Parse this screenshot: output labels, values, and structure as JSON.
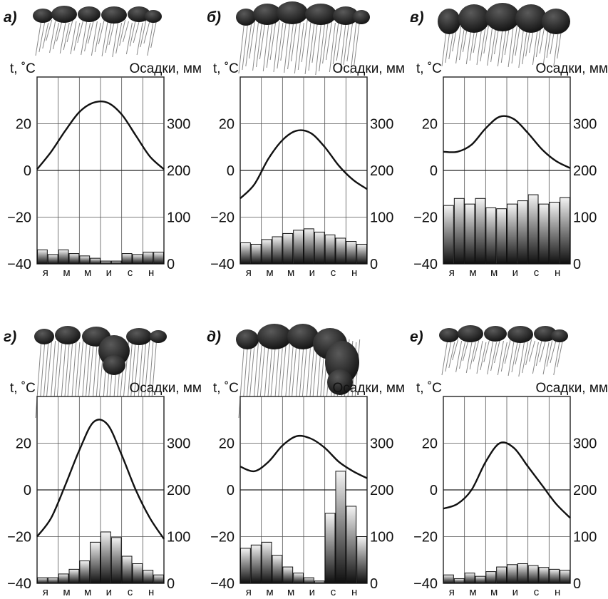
{
  "chart_data": [
    {
      "type": "bar+line",
      "letter": "а)",
      "t_label": "t, ˚C",
      "p_label": "Осадки, мм",
      "temp_ticks": [
        "20",
        "0",
        "−20",
        "−40"
      ],
      "precip_ticks": [
        "300",
        "200",
        "100",
        "0"
      ],
      "months": [
        "я",
        "м",
        "м",
        "и",
        "с",
        "н"
      ],
      "ylim_temp": [
        -40,
        40
      ],
      "ylim_precip": [
        0,
        400
      ],
      "temperature": [
        0.5,
        8,
        17,
        25,
        29,
        29,
        24,
        15,
        6,
        0.5
      ],
      "precipitation": [
        30,
        20,
        30,
        22,
        17,
        12,
        6,
        6,
        22,
        20,
        25,
        25
      ],
      "grid": true,
      "cloud": "low-flat"
    },
    {
      "type": "bar+line",
      "letter": "б)",
      "t_label": "t, ˚C",
      "p_label": "Осадки, мм",
      "temp_ticks": [
        "20",
        "0",
        "−20",
        "−40"
      ],
      "precip_ticks": [
        "300",
        "200",
        "100",
        "0"
      ],
      "months": [
        "я",
        "м",
        "м",
        "и",
        "с",
        "н"
      ],
      "ylim_temp": [
        -40,
        40
      ],
      "ylim_precip": [
        0,
        400
      ],
      "temperature": [
        -12,
        -6,
        5,
        13,
        17,
        16,
        10,
        2,
        -4,
        -8
      ],
      "precipitation": [
        45,
        42,
        52,
        58,
        65,
        72,
        75,
        68,
        62,
        55,
        48,
        42
      ],
      "grid": true,
      "cloud": "dense-flat"
    },
    {
      "type": "bar+line",
      "letter": "в)",
      "t_label": "t, ˚C",
      "p_label": "Осадки, мм",
      "temp_ticks": [
        "20",
        "0",
        "−20",
        "−40"
      ],
      "precip_ticks": [
        "300",
        "200",
        "100",
        "0"
      ],
      "months": [
        "я",
        "м",
        "м",
        "и",
        "с",
        "н"
      ],
      "ylim_temp": [
        -40,
        40
      ],
      "ylim_precip": [
        0,
        400
      ],
      "temperature": [
        8,
        8,
        11,
        18,
        23,
        22,
        16,
        9,
        4,
        1
      ],
      "precipitation": [
        125,
        140,
        128,
        140,
        120,
        118,
        128,
        135,
        148,
        128,
        132,
        142
      ],
      "grid": true,
      "cloud": "heavy-flat"
    },
    {
      "type": "bar+line",
      "letter": "г)",
      "t_label": "t, ˚C",
      "p_label": "Осадки, мм",
      "temp_ticks": [
        "20",
        "0",
        "−20",
        "−40"
      ],
      "precip_ticks": [
        "300",
        "200",
        "100",
        "0"
      ],
      "months": [
        "я",
        "м",
        "м",
        "и",
        "с",
        "н"
      ],
      "ylim_temp": [
        -40,
        40
      ],
      "ylim_precip": [
        0,
        400
      ],
      "temperature": [
        -20,
        -12,
        2,
        17,
        29,
        28,
        15,
        0,
        -12,
        -21
      ],
      "precipitation": [
        12,
        12,
        20,
        30,
        48,
        88,
        110,
        98,
        58,
        42,
        28,
        18
      ],
      "grid": true,
      "cloud": "summer-peak"
    },
    {
      "type": "bar+line",
      "letter": "д)",
      "t_label": "t, ˚C",
      "p_label": "Осадки, мм",
      "temp_ticks": [
        "20",
        "0",
        "−20",
        "−40"
      ],
      "precip_ticks": [
        "300",
        "200",
        "100",
        "0"
      ],
      "months": [
        "я",
        "м",
        "м",
        "и",
        "с",
        "н"
      ],
      "ylim_temp": [
        -40,
        40
      ],
      "ylim_precip": [
        0,
        400
      ],
      "temperature": [
        10,
        8,
        12,
        19,
        23,
        22,
        18,
        12,
        8,
        5
      ],
      "precipitation": [
        75,
        82,
        88,
        60,
        35,
        22,
        12,
        5,
        150,
        240,
        165,
        100
      ],
      "grid": true,
      "cloud": "autumn-peak"
    },
    {
      "type": "bar+line",
      "letter": "е)",
      "t_label": "t, ˚C",
      "p_label": "Осадки, мм",
      "temp_ticks": [
        "20",
        "0",
        "−20",
        "−40"
      ],
      "precip_ticks": [
        "300",
        "200",
        "100",
        "0"
      ],
      "months": [
        "я",
        "м",
        "м",
        "и",
        "с",
        "н"
      ],
      "ylim_temp": [
        -40,
        40
      ],
      "ylim_precip": [
        0,
        400
      ],
      "temperature": [
        -8,
        -6,
        0,
        12,
        20,
        18,
        10,
        2,
        -6,
        -12
      ],
      "precipitation": [
        18,
        10,
        22,
        15,
        25,
        35,
        40,
        42,
        38,
        34,
        30,
        28
      ],
      "grid": true,
      "cloud": "low-flat"
    }
  ]
}
